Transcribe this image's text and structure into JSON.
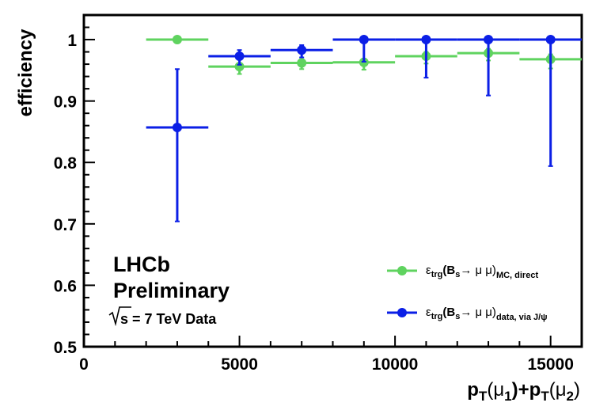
{
  "chart_data": {
    "type": "scatter",
    "title": "",
    "xlabel": {
      "p1": "p",
      "s1": "T",
      "p2": "(μ",
      "s2": "1",
      "p3": ")+p",
      "s3": "T",
      "p4": "(μ",
      "s4": "2",
      "p5": ")"
    },
    "ylabel": "efficiency",
    "xlim": [
      0,
      16000
    ],
    "ylim": [
      0.5,
      1.04
    ],
    "xticks": [
      {
        "value": 0,
        "label": "0"
      },
      {
        "value": 5000,
        "label": "5000"
      },
      {
        "value": 10000,
        "label": "10000"
      },
      {
        "value": 15000,
        "label": "15000"
      }
    ],
    "yticks": [
      {
        "value": 0.5,
        "label": "0.5"
      },
      {
        "value": 0.6,
        "label": "0.6"
      },
      {
        "value": 0.7,
        "label": "0.7"
      },
      {
        "value": 0.8,
        "label": "0.8"
      },
      {
        "value": 0.9,
        "label": "0.9"
      },
      {
        "value": 1.0,
        "label": "1"
      }
    ],
    "grid": false,
    "legend_position": "bottom-right",
    "series": [
      {
        "color": "#5fd35f",
        "legend": {
          "eps": "ε",
          "sub1": "trg",
          "mid": "(B",
          "sub2": "s",
          "arrow": "→ μ μ)",
          "sub3": "MC, direct"
        },
        "points": [
          {
            "x": 3000,
            "xerr": 1000,
            "y": 1.0,
            "ylo": 0.0,
            "yhi": 0.0
          },
          {
            "x": 5000,
            "xerr": 1000,
            "y": 0.956,
            "ylo": 0.012,
            "yhi": 0.006
          },
          {
            "x": 7000,
            "xerr": 1000,
            "y": 0.962,
            "ylo": 0.01,
            "yhi": 0.006
          },
          {
            "x": 9000,
            "xerr": 1000,
            "y": 0.963,
            "ylo": 0.012,
            "yhi": 0.006
          },
          {
            "x": 11000,
            "xerr": 1000,
            "y": 0.973,
            "ylo": 0.012,
            "yhi": 0.007
          },
          {
            "x": 13000,
            "xerr": 1000,
            "y": 0.978,
            "ylo": 0.012,
            "yhi": 0.007
          },
          {
            "x": 15000,
            "xerr": 1000,
            "y": 0.968,
            "ylo": 0.015,
            "yhi": 0.008
          }
        ]
      },
      {
        "color": "#0b1fe6",
        "legend": {
          "eps": "ε",
          "sub1": "trg",
          "mid": "(B",
          "sub2": "s",
          "arrow": "→ μ μ)",
          "sub3": "data, via J/ψ"
        },
        "points": [
          {
            "x": 3000,
            "xerr": 1000,
            "y": 0.857,
            "ylo": 0.153,
            "yhi": 0.095
          },
          {
            "x": 5000,
            "xerr": 1000,
            "y": 0.973,
            "ylo": 0.014,
            "yhi": 0.01
          },
          {
            "x": 7000,
            "xerr": 1000,
            "y": 0.983,
            "ylo": 0.012,
            "yhi": 0.008
          },
          {
            "x": 9000,
            "xerr": 1000,
            "y": 1.0,
            "ylo": 0.036,
            "yhi": 0.0
          },
          {
            "x": 11000,
            "xerr": 1000,
            "y": 1.0,
            "ylo": 0.062,
            "yhi": 0.0
          },
          {
            "x": 13000,
            "xerr": 1000,
            "y": 1.0,
            "ylo": 0.091,
            "yhi": 0.0
          },
          {
            "x": 15000,
            "xerr": 1000,
            "y": 1.0,
            "ylo": 0.206,
            "yhi": 0.0
          }
        ]
      }
    ],
    "annotations": {
      "line1": "LHCb",
      "line2": "Preliminary",
      "energy_pre": "s",
      "energy_post": " = 7 TeV Data"
    }
  }
}
